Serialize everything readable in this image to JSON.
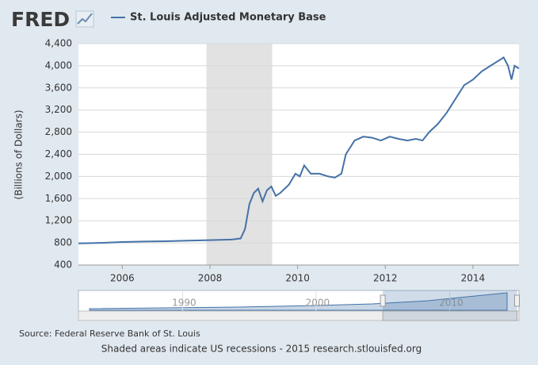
{
  "chart_data": {
    "type": "line",
    "logo": "FRED",
    "ylabel": "(Billions of Dollars)",
    "source": "Source: Federal Reserve Bank of St. Louis",
    "note": "Shaded areas indicate US recessions - 2015 research.stlouisfed.org",
    "x": [
      2005.0,
      2005.5,
      2006.0,
      2006.5,
      2007.0,
      2007.5,
      2008.0,
      2008.5,
      2008.7,
      2008.8,
      2008.9,
      2009.0,
      2009.1,
      2009.2,
      2009.3,
      2009.4,
      2009.5,
      2009.6,
      2009.8,
      2009.95,
      2010.05,
      2010.15,
      2010.3,
      2010.5,
      2010.7,
      2010.85,
      2011.0,
      2011.1,
      2011.3,
      2011.5,
      2011.7,
      2011.9,
      2012.1,
      2012.3,
      2012.5,
      2012.7,
      2012.85,
      2013.0,
      2013.2,
      2013.4,
      2013.6,
      2013.8,
      2014.0,
      2014.2,
      2014.4,
      2014.6,
      2014.7,
      2014.8,
      2014.88,
      2014.95,
      2015.05
    ],
    "series": [
      {
        "name": "St. Louis Adjusted Monetary Base",
        "color": "#4572a7",
        "values": [
          790,
          800,
          815,
          825,
          830,
          840,
          850,
          860,
          880,
          1050,
          1500,
          1700,
          1780,
          1550,
          1750,
          1820,
          1650,
          1700,
          1850,
          2050,
          2000,
          2200,
          2050,
          2050,
          2000,
          1980,
          2050,
          2400,
          2650,
          2720,
          2700,
          2650,
          2720,
          2680,
          2650,
          2680,
          2650,
          2800,
          2950,
          3150,
          3400,
          3650,
          3750,
          3900,
          4000,
          4100,
          4150,
          4000,
          3750,
          4000,
          3950
        ]
      }
    ],
    "recessions": [
      [
        2007.92,
        2009.42
      ]
    ],
    "recession_color": "#e2e2e2",
    "xlim": [
      2005.0,
      2015.05
    ],
    "xticks": [
      2006,
      2008,
      2010,
      2012,
      2014
    ],
    "ylim": [
      400,
      4400
    ],
    "yticks": [
      400,
      800,
      {
        "value": 1200,
        "label": "1,200"
      },
      {
        "value": 1600,
        "label": "1,600"
      },
      {
        "value": 2000,
        "label": "2,000"
      },
      {
        "value": 2400,
        "label": "2,400"
      },
      {
        "value": 2800,
        "label": "2,800"
      },
      {
        "value": 3200,
        "label": "3,200"
      },
      {
        "value": 3600,
        "label": "3,600"
      },
      {
        "value": 4000,
        "label": "4,000"
      },
      {
        "value": 4400,
        "label": "4,400"
      }
    ],
    "grid": true,
    "navigator": {
      "xlim": [
        1982.2,
        2015.2
      ],
      "xticks": [
        1990,
        2000,
        2010
      ]
    }
  }
}
